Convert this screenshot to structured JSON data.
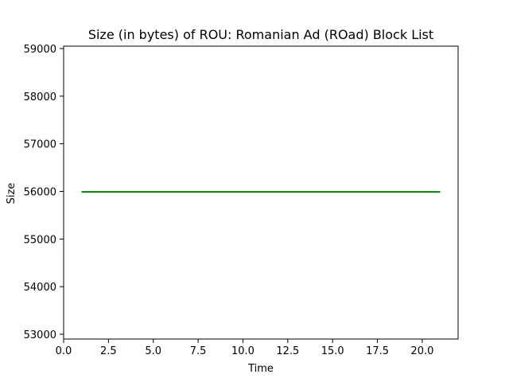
{
  "chart_data": {
    "type": "line",
    "title": "Size (in bytes) of ROU: Romanian Ad (ROad) Block List",
    "xlabel": "Time",
    "ylabel": "Size",
    "xlim": [
      0,
      22
    ],
    "ylim": [
      52900,
      59050
    ],
    "x_ticks": [
      0.0,
      2.5,
      5.0,
      7.5,
      10.0,
      12.5,
      15.0,
      17.5,
      20.0
    ],
    "x_tick_labels": [
      "0.0",
      "2.5",
      "5.0",
      "7.5",
      "10.0",
      "12.5",
      "15.0",
      "17.5",
      "20.0"
    ],
    "y_ticks": [
      53000,
      54000,
      55000,
      56000,
      57000,
      58000,
      59000
    ],
    "y_tick_labels": [
      "53000",
      "54000",
      "55000",
      "56000",
      "57000",
      "58000",
      "59000"
    ],
    "grid": false,
    "series": [
      {
        "color": "#008000",
        "x": [
          1,
          21
        ],
        "y": [
          55990,
          55990
        ]
      }
    ]
  }
}
